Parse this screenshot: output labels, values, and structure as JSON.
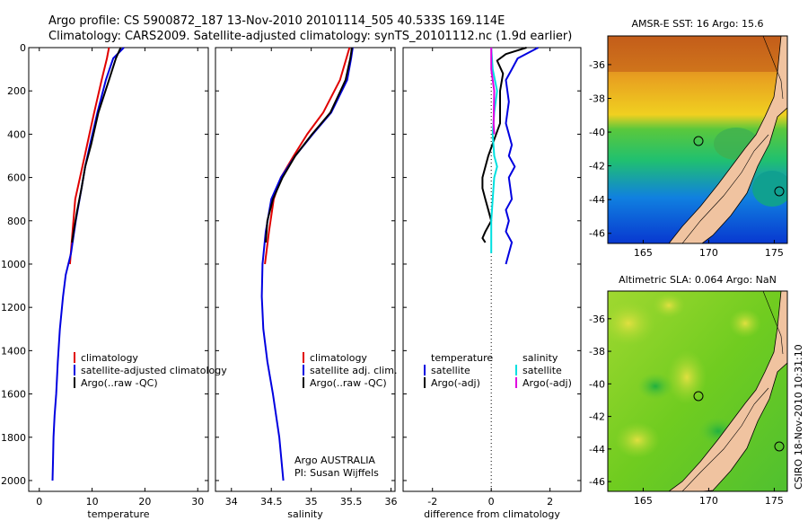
{
  "header": {
    "line1": "Argo profile: CS 5900872_187 13-Nov-2010 20101114_505 40.533S 169.114E",
    "line2": "Climatology: CARS2009. Satellite-adjusted climatology: synTS_20101112.nc (1.9d earlier)"
  },
  "side_label": "CSIRO 18-Nov-2010 10:31:10",
  "colors": {
    "climatology": "#e00000",
    "satellite": "#0000e0",
    "argo": "#000000",
    "sat_diff": "#00e0e0",
    "argo_adj": "#e000e0"
  },
  "chart_data": [
    {
      "type": "line",
      "id": "temperature",
      "xlabel": "temperature",
      "ylabel": "",
      "xlim": [
        -2,
        32
      ],
      "ylim": [
        2050,
        0
      ],
      "xticks": [
        0,
        10,
        20,
        30
      ],
      "yticks": [
        0,
        200,
        400,
        600,
        800,
        1000,
        1200,
        1400,
        1600,
        1800,
        2000
      ],
      "legend": [
        "climatology",
        "satellite-adjusted climatology",
        "Argo(..raw -QC)"
      ],
      "series": [
        {
          "name": "climatology",
          "color": "#e00000",
          "x": [
            13.2,
            12.8,
            11.8,
            10.4,
            9.5,
            8.6,
            7.7,
            6.8,
            6.3,
            5.8
          ],
          "y": [
            0,
            50,
            150,
            300,
            400,
            500,
            600,
            700,
            850,
            1000
          ]
        },
        {
          "name": "satellite-adjusted climatology",
          "color": "#0000e0",
          "x": [
            16.0,
            14.0,
            12.6,
            11.0,
            9.6,
            8.7,
            8.0,
            6.9,
            6.0,
            5.0,
            4.5,
            3.9,
            3.5,
            3.2,
            2.9,
            2.7,
            2.6,
            2.5
          ],
          "y": [
            0,
            50,
            150,
            300,
            450,
            550,
            650,
            800,
            950,
            1050,
            1150,
            1300,
            1450,
            1600,
            1700,
            1800,
            1900,
            2000
          ]
        },
        {
          "name": "Argo(..raw -QC)",
          "color": "#000000",
          "x": [
            15.4,
            14.5,
            13.2,
            11.2,
            9.8,
            8.7,
            8.0,
            7.2,
            6.5,
            6.2
          ],
          "y": [
            0,
            50,
            150,
            300,
            450,
            550,
            650,
            750,
            850,
            900
          ]
        }
      ]
    },
    {
      "type": "line",
      "id": "salinity",
      "xlabel": "salinity",
      "ylabel": "",
      "xlim": [
        33.8,
        36.05
      ],
      "ylim": [
        2050,
        0
      ],
      "xticks": [
        34,
        34.5,
        35,
        35.5,
        36
      ],
      "yticks": [
        0,
        200,
        400,
        600,
        800,
        1000,
        1200,
        1400,
        1600,
        1800,
        2000
      ],
      "legend": [
        "climatology",
        "satellite adj. clim.",
        "Argo(..raw -QC)"
      ],
      "annotation": [
        "Argo AUSTRALIA",
        "PI: Susan Wijffels"
      ],
      "series": [
        {
          "name": "climatology",
          "color": "#e00000",
          "x": [
            35.48,
            35.44,
            35.36,
            35.15,
            34.95,
            34.78,
            34.62,
            34.53,
            34.47,
            34.42
          ],
          "y": [
            0,
            50,
            150,
            300,
            400,
            500,
            600,
            700,
            850,
            1000
          ]
        },
        {
          "name": "satellite adj. clim.",
          "color": "#0000e0",
          "x": [
            35.52,
            35.5,
            35.45,
            35.25,
            35.02,
            34.8,
            34.62,
            34.5,
            34.43,
            34.39,
            34.38,
            34.4,
            34.45,
            34.52,
            34.6,
            34.65
          ],
          "y": [
            0,
            50,
            150,
            300,
            400,
            500,
            600,
            700,
            850,
            1000,
            1150,
            1300,
            1450,
            1600,
            1800,
            2000
          ]
        },
        {
          "name": "Argo(..raw -QC)",
          "color": "#000000",
          "x": [
            35.51,
            35.49,
            35.43,
            35.24,
            35.01,
            34.8,
            34.64,
            34.52,
            34.45,
            34.43
          ],
          "y": [
            0,
            50,
            150,
            300,
            400,
            500,
            600,
            700,
            800,
            900
          ]
        }
      ]
    },
    {
      "type": "line",
      "id": "difference",
      "xlabel": "difference from climatology",
      "ylabel": "",
      "xlim": [
        -3,
        3.05
      ],
      "ylim": [
        2050,
        0
      ],
      "xticks": [
        -2,
        0,
        2
      ],
      "yticks": [
        0,
        200,
        400,
        600,
        800,
        1000,
        1200,
        1400,
        1600,
        1800,
        2000
      ],
      "legend_left": [
        "temperature",
        "satellite",
        "Argo(-adj)"
      ],
      "legend_right": [
        "salinity",
        "satellite",
        "Argo(-adj)"
      ],
      "series": [
        {
          "name": "temperature satellite",
          "color": "#0000e0",
          "x": [
            1.6,
            0.9,
            0.7,
            0.5,
            0.6,
            0.5,
            0.7,
            0.6,
            0.8,
            0.6,
            0.7,
            0.5,
            0.6,
            0.5,
            0.7,
            0.6,
            0.5
          ],
          "y": [
            0,
            50,
            100,
            150,
            250,
            350,
            450,
            500,
            550,
            600,
            700,
            750,
            800,
            850,
            900,
            950,
            1000
          ]
        },
        {
          "name": "temperature Argo(-adj)",
          "color": "#000000",
          "x": [
            1.2,
            0.5,
            0.2,
            0.3,
            0.4,
            0.3,
            0.3,
            -0.1,
            -0.3,
            -0.3,
            -0.2,
            -0.1,
            0.0,
            -0.2,
            -0.3,
            -0.2
          ],
          "y": [
            0,
            30,
            60,
            90,
            120,
            200,
            350,
            500,
            600,
            650,
            700,
            750,
            800,
            850,
            880,
            900
          ]
        },
        {
          "name": "salinity satellite",
          "color": "#00e0e0",
          "x": [
            0.0,
            0.05,
            0.2,
            0.1,
            0.05,
            0.1,
            0.2,
            0.1,
            0.05,
            0.0,
            0.0,
            0.0
          ],
          "y": [
            0,
            100,
            200,
            300,
            400,
            500,
            550,
            600,
            700,
            800,
            900,
            950
          ]
        },
        {
          "name": "salinity Argo(-adj)",
          "color": "#e000e0",
          "x": [
            0.0,
            0.0,
            0.1,
            0.08,
            0.1
          ],
          "y": [
            0,
            100,
            200,
            350,
            400
          ]
        }
      ]
    },
    {
      "type": "heatmap",
      "id": "sst_map",
      "title": "AMSR-E SST: 16  Argo: 15.6",
      "xlim": [
        162.3,
        176
      ],
      "ylim": [
        -46.6,
        -34.3
      ],
      "xticks": [
        165,
        170,
        175
      ],
      "yticks": [
        -36,
        -38,
        -40,
        -42,
        -44,
        -46
      ],
      "marker": {
        "lon": 169.114,
        "lat": -40.533
      }
    },
    {
      "type": "heatmap",
      "id": "sla_map",
      "title": "Altimetric SLA: 0.064  Argo: NaN",
      "xlim": [
        162.3,
        176
      ],
      "ylim": [
        -46.6,
        -34.3
      ],
      "xticks": [
        165,
        170,
        175
      ],
      "yticks": [
        -36,
        -38,
        -40,
        -42,
        -44,
        -46
      ],
      "marker": {
        "lon": 169.114,
        "lat": -40.533
      }
    }
  ]
}
